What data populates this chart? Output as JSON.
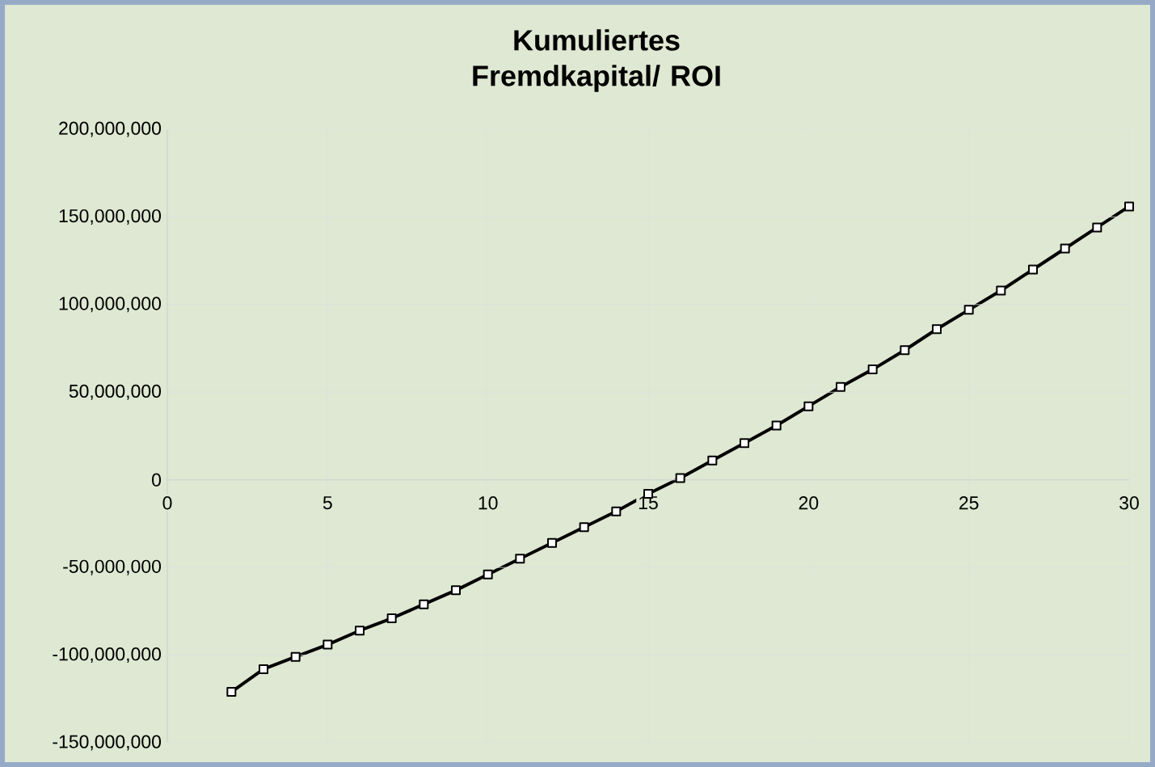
{
  "chart_data": {
    "type": "line",
    "title": "Kumuliertes Fremdkapital/ ROI",
    "x": [
      2,
      3,
      4,
      5,
      6,
      7,
      8,
      9,
      10,
      11,
      12,
      13,
      14,
      15,
      16,
      17,
      18,
      19,
      20,
      21,
      22,
      23,
      24,
      25,
      26,
      27,
      28,
      29,
      30
    ],
    "series": [
      {
        "color": "#000000",
        "values": [
          -121000000,
          -108000000,
          -101000000,
          -94000000,
          -86000000,
          -79000000,
          -71000000,
          -63000000,
          -54000000,
          -45000000,
          -36000000,
          -27000000,
          -18000000,
          -8000000,
          1000000,
          11000000,
          21000000,
          31000000,
          42000000,
          53000000,
          63000000,
          74000000,
          86000000,
          97000000,
          108000000,
          120000000,
          132000000,
          144000000,
          156000000
        ]
      }
    ],
    "xlim": [
      0,
      30
    ],
    "xticks": [
      0,
      5,
      10,
      15,
      20,
      25,
      30
    ],
    "ylim": [
      -150000000,
      200000000
    ],
    "yticks": [
      {
        "value": -150000000,
        "label": "-150,000,000"
      },
      {
        "value": -100000000,
        "label": "-100,000,000"
      },
      {
        "value": -50000000,
        "label": "-50,000,000"
      },
      {
        "value": 0,
        "label": "0"
      },
      {
        "value": 50000000,
        "label": "50,000,000"
      },
      {
        "value": 100000000,
        "label": "100,000,000"
      },
      {
        "value": 150000000,
        "label": "150,000,000"
      },
      {
        "value": 200000000,
        "label": "200,000,000"
      }
    ],
    "grid": true,
    "marker": "square",
    "line_style": "solid"
  }
}
